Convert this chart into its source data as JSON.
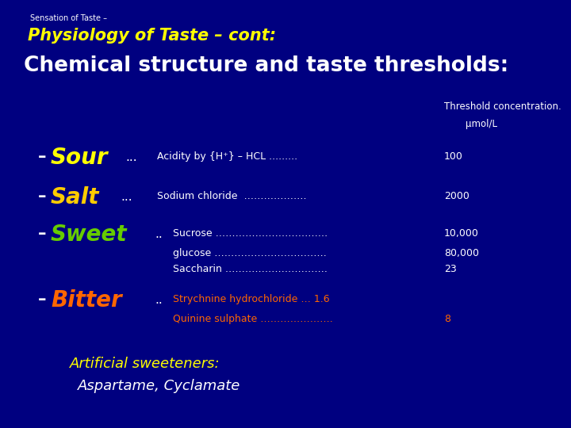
{
  "background_color": "#000080",
  "top_label": "Sensation of Taste –",
  "title_line1": "Physiology of Taste – cont:",
  "title_line2": "Chemical structure and taste thresholds:",
  "threshold_label1": "Threshold concentration.",
  "threshold_label2": "μmol/L",
  "footer_line1": "Artificial sweeteners:",
  "footer_line2": "Aspartame, Cyclamate",
  "color_white": "#ffffff",
  "color_yellow": "#ffff00",
  "color_green": "#66cc00",
  "color_orange": "#ff6600",
  "color_salt": "#ffcc00"
}
